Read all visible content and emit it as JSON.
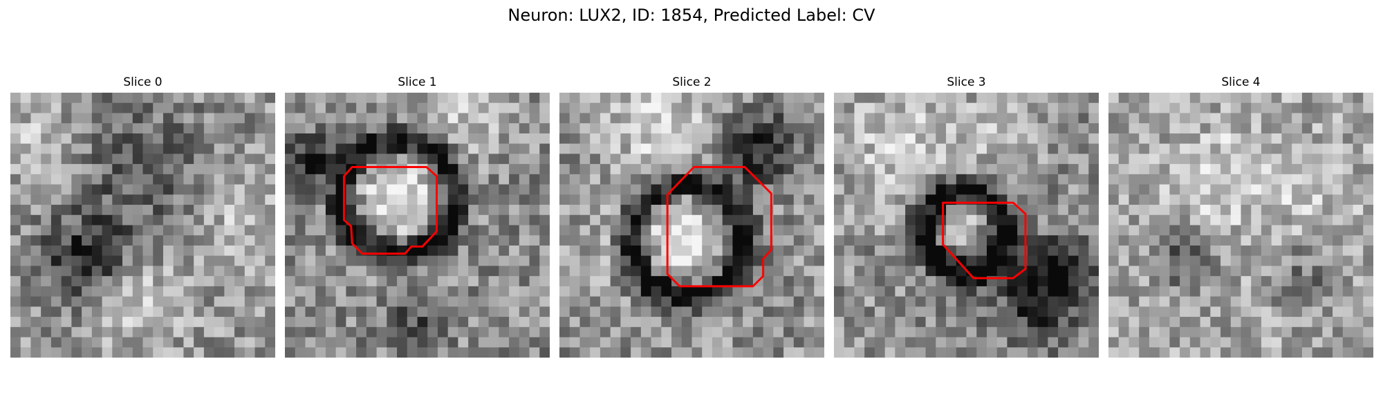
{
  "figure": {
    "title": "Neuron: LUX2, ID: 1854, Predicted Label: CV"
  },
  "panels": [
    {
      "title": "Slice 0",
      "has_contour": false
    },
    {
      "title": "Slice 1",
      "has_contour": true
    },
    {
      "title": "Slice 2",
      "has_contour": true
    },
    {
      "title": "Slice 3",
      "has_contour": true
    },
    {
      "title": "Slice 4",
      "has_contour": false
    }
  ],
  "colors": {
    "contour": "#ff0000",
    "background": "#ffffff"
  }
}
